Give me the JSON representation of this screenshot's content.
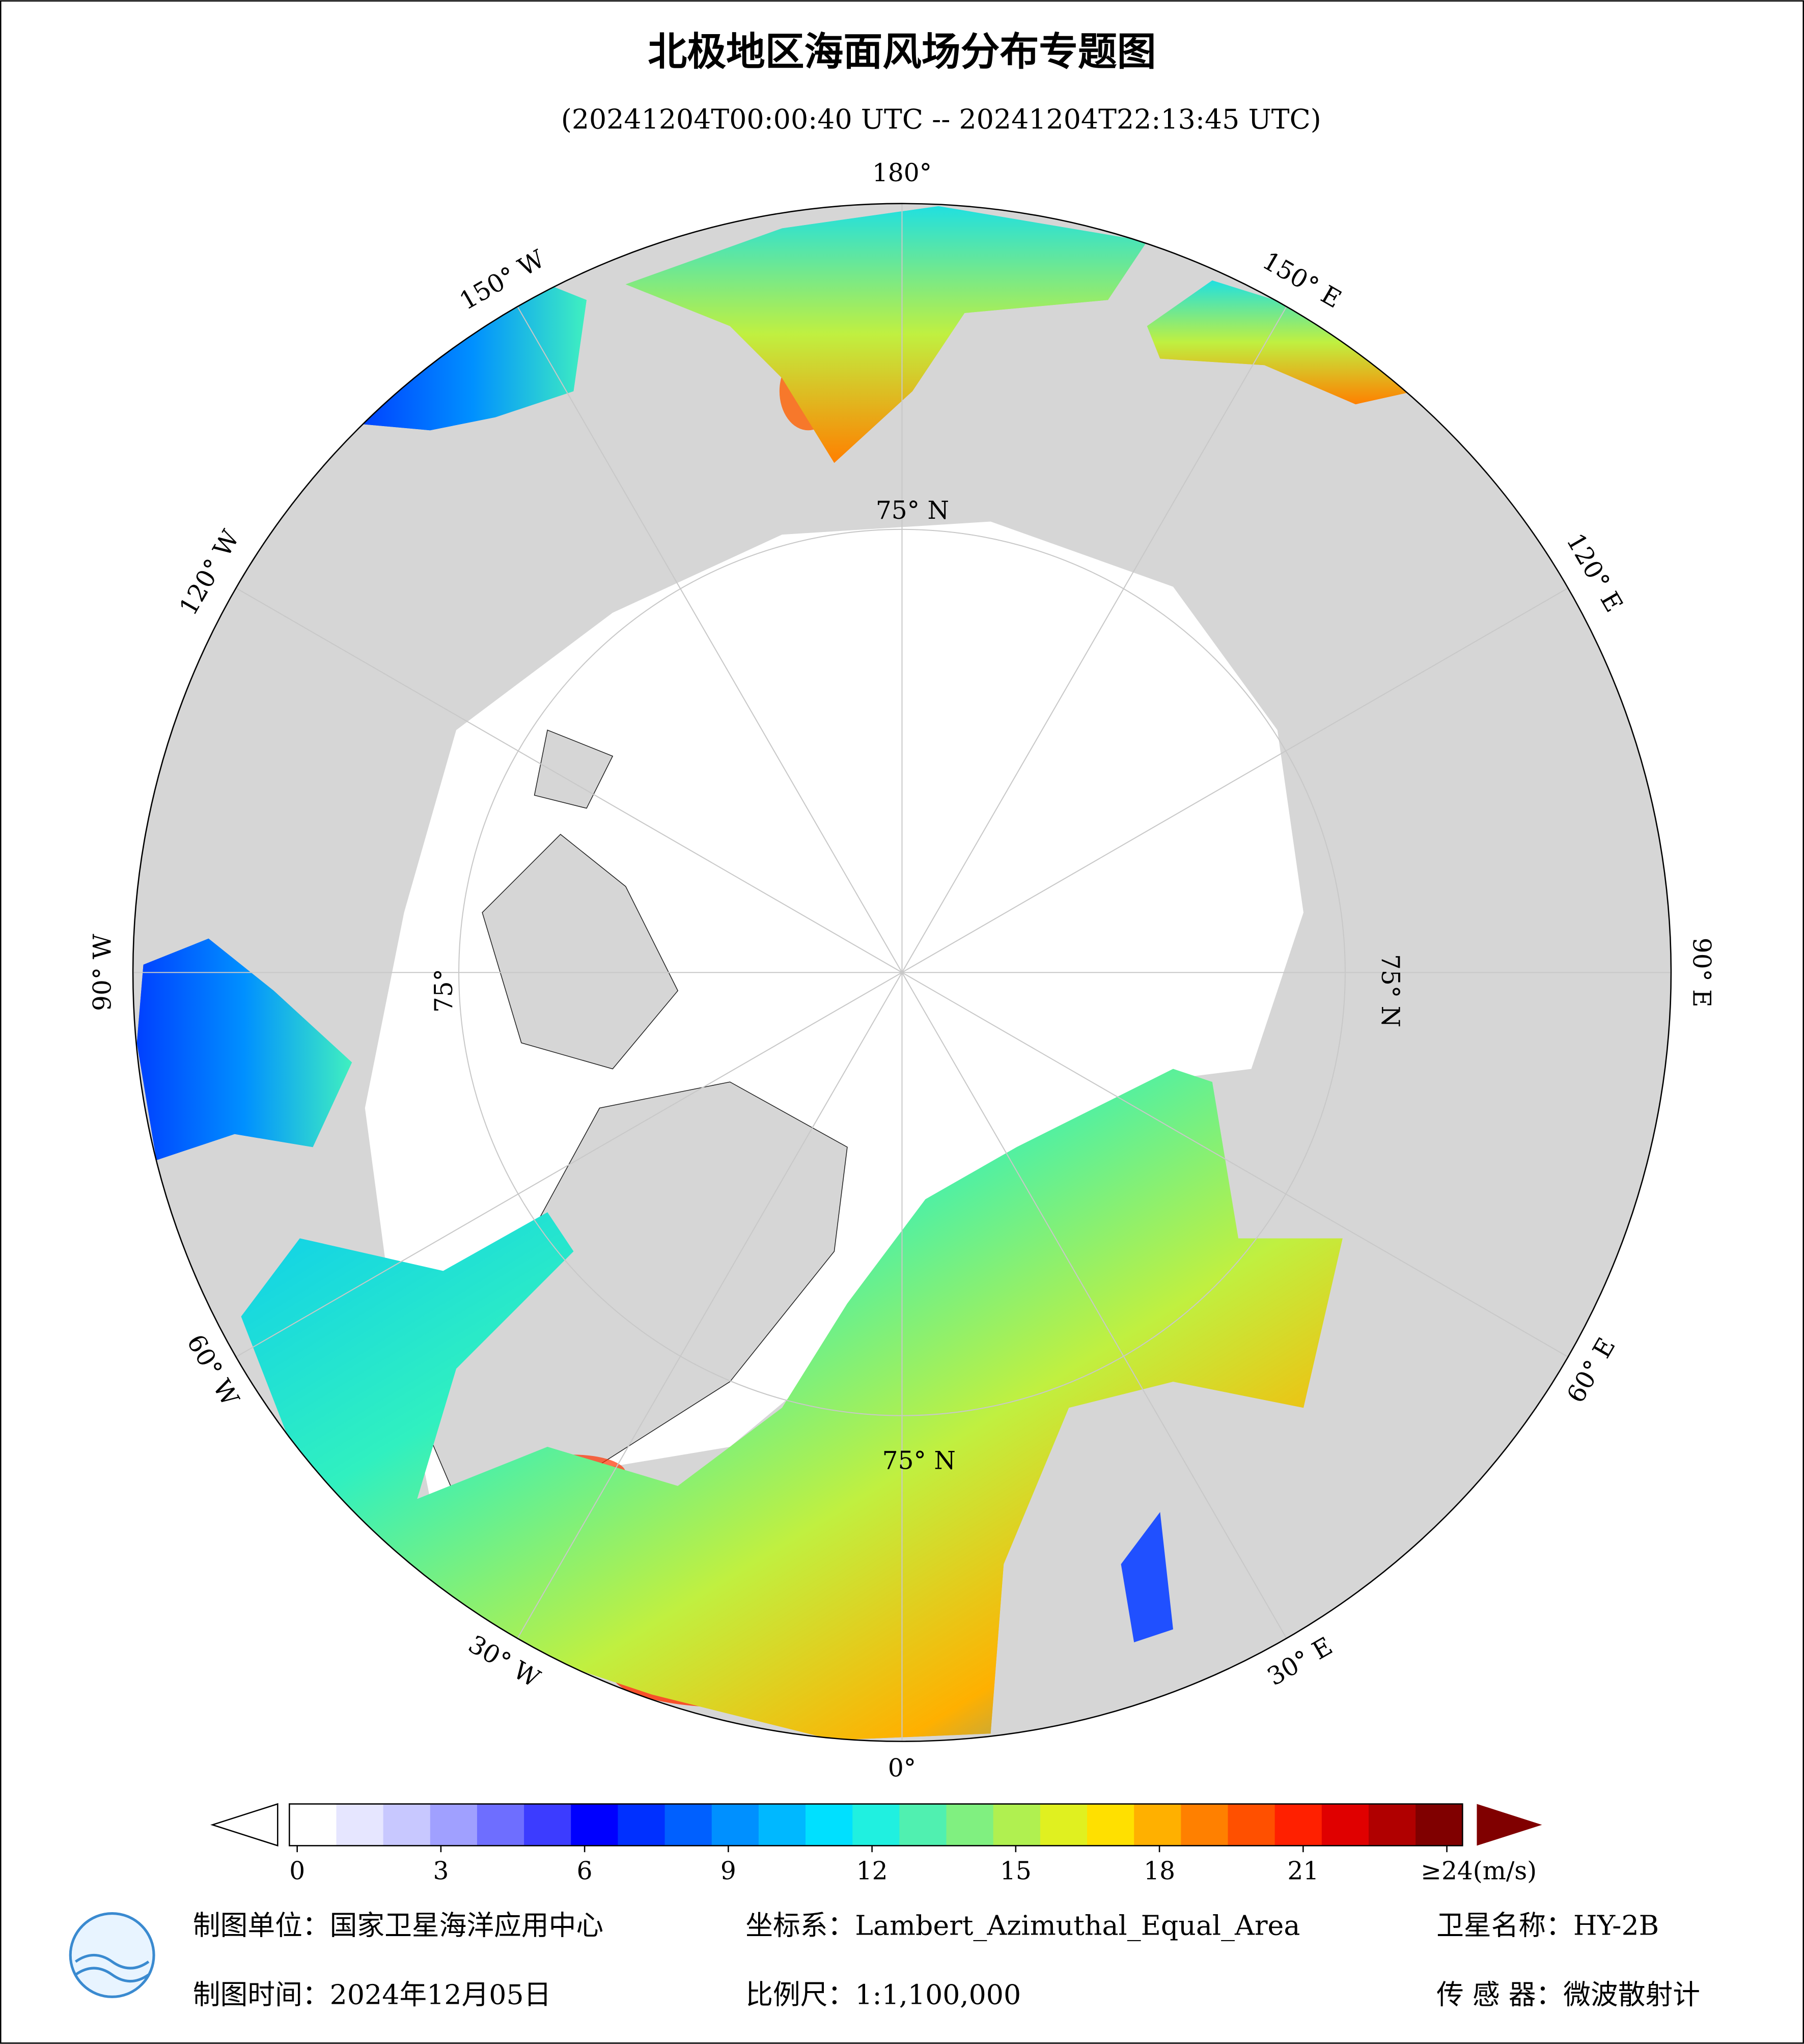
{
  "header": {
    "title": "北极地区海面风场分布专题图",
    "subtitle": "(20241204T00:00:40 UTC -- 20241204T22:13:45 UTC)"
  },
  "map": {
    "longitude_labels": [
      "180°",
      "150° W",
      "120° W",
      "90° W",
      "60° W",
      "30° W",
      "0°",
      "30° E",
      "60° E",
      "90° E",
      "120° E",
      "150° E"
    ],
    "latitude_labels": [
      "75° N",
      "75° N",
      "75°",
      "75° N"
    ]
  },
  "colorbar": {
    "ticks": [
      0,
      3,
      6,
      9,
      12,
      15,
      18,
      21,
      {
        "value": 24,
        "label": "≥24"
      }
    ],
    "unit": "(m/s)",
    "colors": [
      "#ffffff",
      "#e6e6ff",
      "#c8c8ff",
      "#a0a0ff",
      "#6e6eff",
      "#3c3cff",
      "#0000ff",
      "#0030ff",
      "#0060ff",
      "#0090ff",
      "#00b8ff",
      "#00e0ff",
      "#20f0e0",
      "#50f0b0",
      "#80f080",
      "#b0f050",
      "#e0f020",
      "#ffe000",
      "#ffb000",
      "#ff8000",
      "#ff5000",
      "#ff2000",
      "#e00000",
      "#b00000",
      "#800000"
    ]
  },
  "footer": {
    "unit": "制图单位：国家卫星海洋应用中心",
    "crs": "坐标系：Lambert_Azimuthal_Equal_Area",
    "satellite": "卫星名称：HY-2B",
    "date": "制图时间：2024年12月05日",
    "scale": "比例尺：1:1,100,000",
    "sensor": "传 感 器：微波散射计"
  }
}
